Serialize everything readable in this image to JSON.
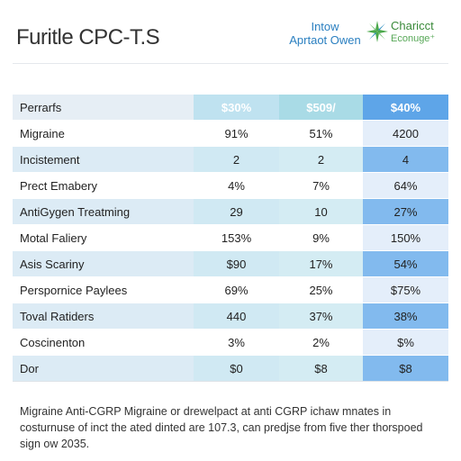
{
  "header": {
    "title": "Furitle CPC-T.S",
    "brand_left": [
      "Intow",
      "Aprtaot Owen"
    ],
    "brand_right": [
      "Charicct",
      "Econuge⁺"
    ]
  },
  "table": {
    "columns": [
      "Perrarfs",
      "$30%",
      "$509/",
      "$40%"
    ],
    "rows": [
      [
        "Migraine",
        "91%",
        "51%",
        "4200"
      ],
      [
        "Incistement",
        "2",
        "2",
        "4"
      ],
      [
        "Prect Emabery",
        "4%",
        "7%",
        "64%"
      ],
      [
        "AntiGygen Treatming",
        "29",
        "10",
        "27%"
      ],
      [
        "Motal Faliery",
        "153%",
        "9%",
        "150%"
      ],
      [
        "Asis Scariny",
        "$90",
        "17%",
        "54%"
      ],
      [
        "Perspornice Paylees",
        "69%",
        "25%",
        "$75%"
      ],
      [
        "Toval Ratiders",
        "440",
        "37%",
        "38%"
      ],
      [
        "Coscinenton",
        "3%",
        "2%",
        "$%"
      ],
      [
        "Dor",
        "$0",
        "$8",
        "$8"
      ]
    ]
  },
  "footer": {
    "text": "Migraine Anti-CGRP Migraine or drewelpact at anti CGRP ichaw mnates in costurnuse of inct the ated dinted are 107.3, can predjse from five ther thorspoed sign ow 2035."
  }
}
